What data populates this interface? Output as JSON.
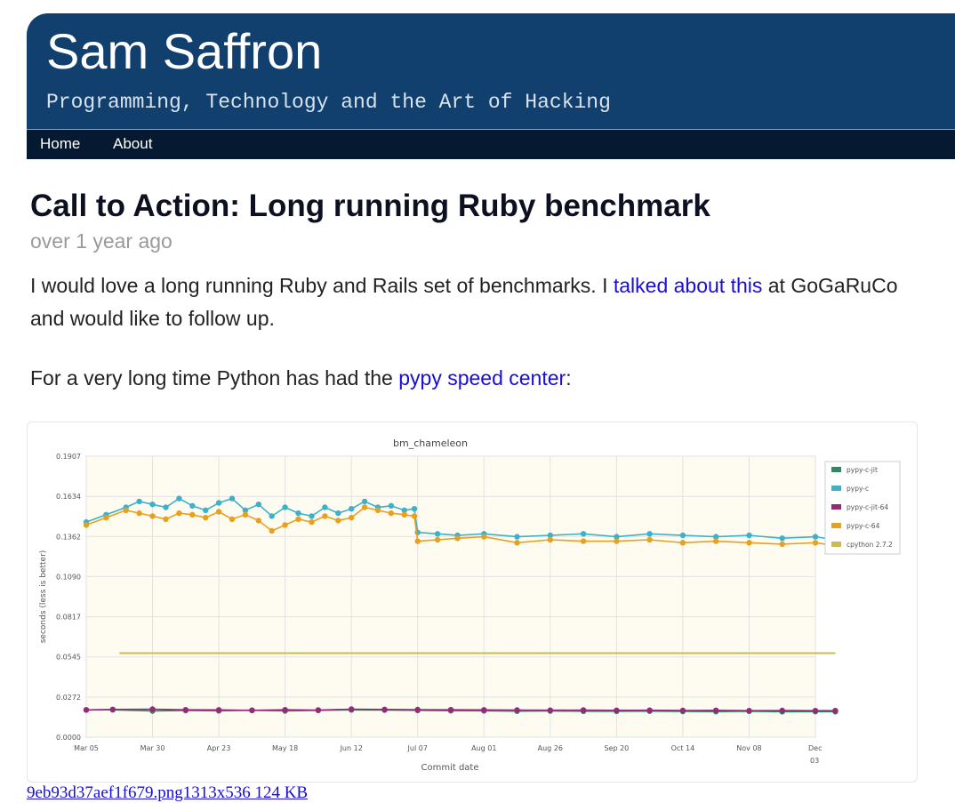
{
  "site": {
    "title": "Sam Saffron",
    "tagline": "Programming, Technology and the Art of Hacking"
  },
  "nav": {
    "items": [
      {
        "label": "Home"
      },
      {
        "label": "About"
      }
    ]
  },
  "post": {
    "title": "Call to Action: Long running Ruby benchmark",
    "date": "over 1 year ago",
    "p1_before": "I would love a long running Ruby and Rails set of benchmarks. I ",
    "p1_link": "talked about this",
    "p1_after": " at GoGaRuCo and would like to follow up.",
    "p2_before": "For a very long time Python has had the ",
    "p2_link": "pypy speed center",
    "p2_after": ":"
  },
  "attachment": {
    "label": "9eb93d37aef1f679.png1313x536 124 KB"
  },
  "colors": {
    "header_bg": "#11406e",
    "nav_bg": "#051a30",
    "link": "#1a0dd8",
    "pypy_c_jit": "#2e8b5e",
    "pypy_c": "#3fb0c9",
    "pypy_c_jit_64": "#952a7b",
    "pypy_c_64": "#e8a020",
    "cpython": "#c9bd52"
  },
  "chart_data": {
    "type": "line",
    "title": "bm_chameleon",
    "xlabel": "Commit date",
    "ylabel": "seconds (less is better)",
    "ylim": [
      0,
      0.1907
    ],
    "yticks": [
      "0.1907",
      "0.1634",
      "0.1362",
      "0.1090",
      "0.0817",
      "0.0545",
      "0.0272",
      "0.0000"
    ],
    "xticks": [
      "Mar 05",
      "Mar 30",
      "Apr 23",
      "May 18",
      "Jun 12",
      "Jul 07",
      "Aug 01",
      "Aug 26",
      "Sep 20",
      "Oct 14",
      "Nov 08",
      "Dec 03"
    ],
    "grid": true,
    "legend_position": "right",
    "series": [
      {
        "name": "pypy-c-jit",
        "x": [
          0,
          0.4,
          1,
          1.5,
          2,
          2.5,
          3,
          3.5,
          4,
          4.5,
          5,
          5.5,
          6,
          6.5,
          7,
          7.5,
          8,
          8.5,
          9,
          9.5,
          10,
          10.5,
          11,
          11.3
        ],
        "y": [
          0.0185,
          0.0186,
          0.0178,
          0.0181,
          0.0179,
          0.0183,
          0.0178,
          0.0182,
          0.0185,
          0.0184,
          0.0182,
          0.018,
          0.0179,
          0.0177,
          0.0178,
          0.0176,
          0.0176,
          0.0177,
          0.0175,
          0.0174,
          0.0176,
          0.0173,
          0.0174,
          0.0173
        ]
      },
      {
        "name": "pypy-c",
        "x": [
          0,
          0.3,
          0.6,
          0.8,
          1.0,
          1.2,
          1.4,
          1.6,
          1.8,
          2.0,
          2.2,
          2.4,
          2.6,
          2.8,
          3.0,
          3.2,
          3.4,
          3.6,
          3.8,
          4.0,
          4.2,
          4.4,
          4.6,
          4.8,
          4.95,
          5.0,
          5.3,
          5.6,
          6.0,
          6.5,
          7.0,
          7.5,
          8.0,
          8.5,
          9.0,
          9.5,
          10.0,
          10.5,
          11.0,
          11.3
        ],
        "y": [
          0.146,
          0.151,
          0.156,
          0.16,
          0.158,
          0.156,
          0.162,
          0.157,
          0.154,
          0.159,
          0.162,
          0.154,
          0.158,
          0.15,
          0.156,
          0.152,
          0.15,
          0.156,
          0.152,
          0.155,
          0.16,
          0.156,
          0.157,
          0.154,
          0.155,
          0.139,
          0.138,
          0.137,
          0.138,
          0.136,
          0.137,
          0.138,
          0.136,
          0.138,
          0.137,
          0.136,
          0.137,
          0.135,
          0.136,
          0.134
        ]
      },
      {
        "name": "pypy-c-jit-64",
        "x": [
          0,
          0.4,
          1,
          1.5,
          2,
          2.5,
          3,
          3.5,
          4,
          4.5,
          5,
          5.5,
          6,
          6.5,
          7,
          7.5,
          8,
          8.5,
          9,
          9.5,
          10,
          10.5,
          11,
          11.3
        ],
        "y": [
          0.0185,
          0.0188,
          0.019,
          0.0186,
          0.0185,
          0.0182,
          0.0186,
          0.0184,
          0.019,
          0.0188,
          0.0187,
          0.0186,
          0.0185,
          0.0184,
          0.0183,
          0.0184,
          0.0182,
          0.0183,
          0.0181,
          0.0182,
          0.018,
          0.0181,
          0.018,
          0.018
        ]
      },
      {
        "name": "pypy-c-64",
        "x": [
          0,
          0.3,
          0.6,
          0.8,
          1.0,
          1.2,
          1.4,
          1.6,
          1.8,
          2.0,
          2.2,
          2.4,
          2.6,
          2.8,
          3.0,
          3.2,
          3.4,
          3.6,
          3.8,
          4.0,
          4.2,
          4.4,
          4.6,
          4.8,
          4.95,
          5.0,
          5.3,
          5.6,
          6.0,
          6.5,
          7.0,
          7.5,
          8.0,
          8.5,
          9.0,
          9.5,
          10.0,
          10.5,
          11.0,
          11.3
        ],
        "y": [
          0.144,
          0.149,
          0.154,
          0.152,
          0.15,
          0.148,
          0.152,
          0.151,
          0.149,
          0.153,
          0.148,
          0.151,
          0.147,
          0.14,
          0.144,
          0.148,
          0.146,
          0.15,
          0.147,
          0.149,
          0.156,
          0.154,
          0.152,
          0.151,
          0.15,
          0.133,
          0.134,
          0.135,
          0.136,
          0.132,
          0.134,
          0.133,
          0.133,
          0.134,
          0.132,
          0.133,
          0.132,
          0.131,
          0.132,
          0.13
        ]
      },
      {
        "name": "cpython 2.7.2",
        "x": [
          0.5,
          11.3
        ],
        "y": [
          0.057,
          0.057
        ]
      }
    ]
  }
}
